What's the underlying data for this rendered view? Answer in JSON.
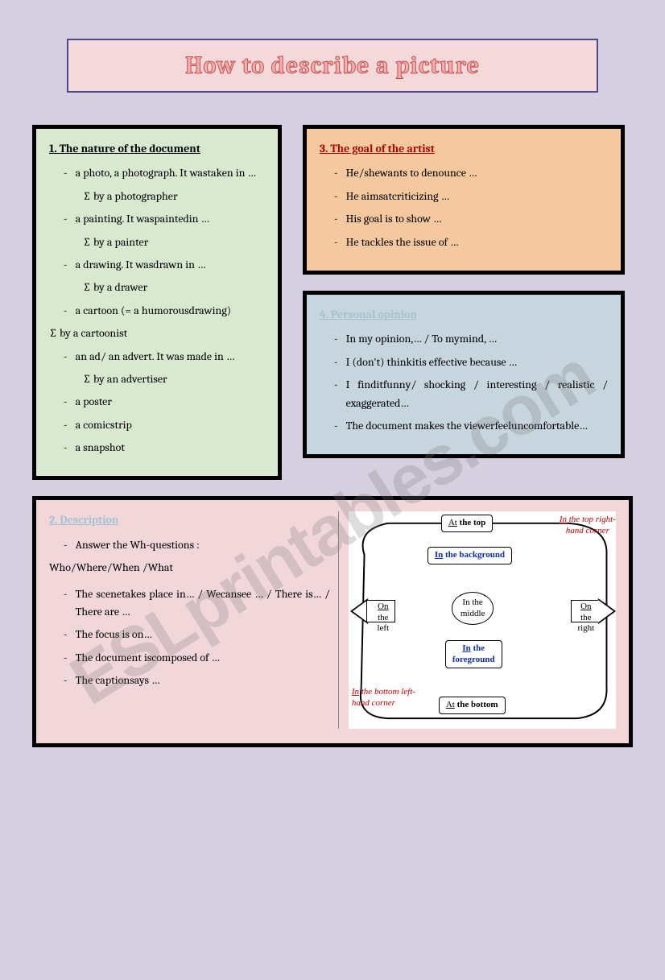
{
  "title": "How to describe a picture",
  "box1": {
    "heading": "1. The nature of the document",
    "items": [
      {
        "main": "a photo, a photograph. It wastaken in …",
        "sub": "∑ by a photographer"
      },
      {
        "main": "a painting. It waspaintedin …",
        "sub": "∑ by a painter"
      },
      {
        "main": "a drawing. It wasdrawn in …",
        "sub": "∑ by a drawer"
      },
      {
        "main": "a cartoon (= a humorousdrawing)",
        "sub_out": "∑ by a cartoonist"
      },
      {
        "main": "an ad/ an advert. It was made in …",
        "sub": "∑ by an advertiser"
      },
      {
        "main": "a poster"
      },
      {
        "main": "a comicstrip"
      },
      {
        "main": "a snapshot"
      }
    ]
  },
  "box3": {
    "heading": "3. The goal of the artist",
    "items": [
      "He/shewants to denounce …",
      "He aimsatcriticizing …",
      "His goal is to show …",
      "He tackles the issue of …"
    ]
  },
  "box4": {
    "heading": "4. Personal opinion",
    "items": [
      "In my opinion,… / To mymind, …",
      "I (don't) thinkitis effective because …",
      "I finditfunny/ shocking / interesting / realistic / exaggerated…",
      "The document makes the viewerfeeluncomfortable…"
    ]
  },
  "box2": {
    "heading": "2. Description",
    "lead": "Answer the Wh-questions :",
    "lead2": "Who/Where/When /What",
    "items": [
      "The scenetakes place in… / Wecansee … / There is… / There are …",
      "The focus is on…",
      "The document iscomposed of …",
      "The captionsays …"
    ]
  },
  "diagram": {
    "top": "At the top",
    "top_right": "In the top right-hand corner",
    "background": "In the background",
    "left": "On the left",
    "middle": "In the middle",
    "right": "On the right",
    "foreground": "In the foreground",
    "bottom_left": "In the bottom left-hand corner",
    "bottom": "At the bottom"
  },
  "watermark": "ESLprintables.com",
  "colors": {
    "page_bg": "#d5cfe0",
    "title_bg": "#f3d9d9",
    "box1_bg": "#d9e9d0",
    "box3_bg": "#f4c9a0",
    "box4_bg": "#c7d5de",
    "box2_bg": "#f2d7da",
    "border": "#000000"
  }
}
